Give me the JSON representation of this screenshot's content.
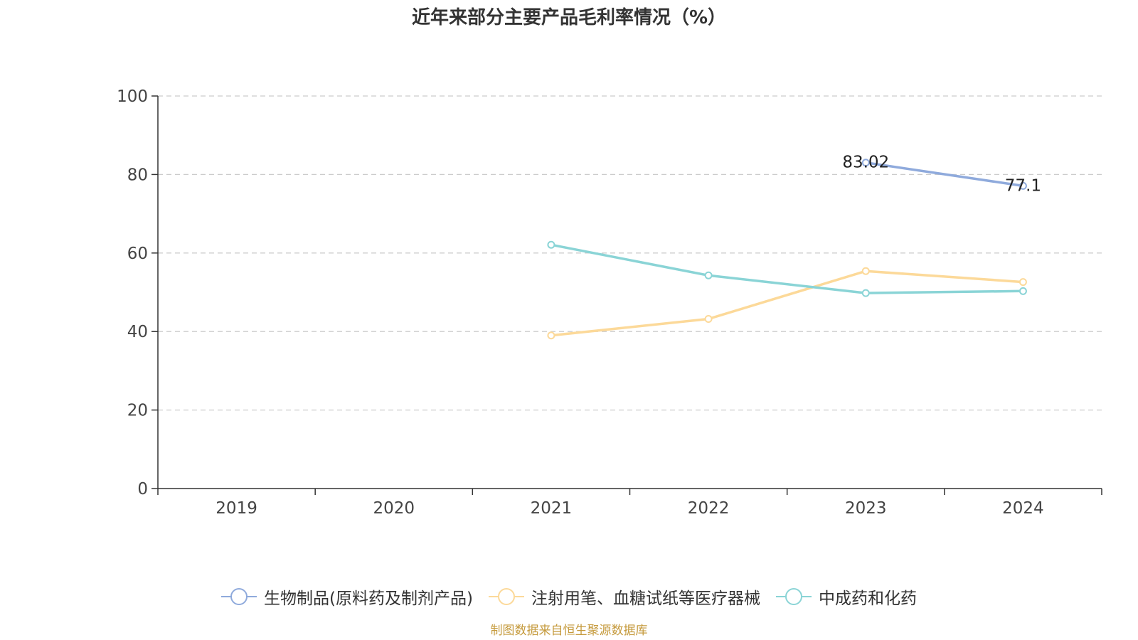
{
  "title": "近年来部分主要产品毛利率情况（%）",
  "source": "制图数据来自恒生聚源数据库",
  "chart_data": {
    "type": "line",
    "title": "近年来部分主要产品毛利率情况（%）",
    "categories": [
      "2019",
      "2020",
      "2021",
      "2022",
      "2023",
      "2024"
    ],
    "ylim": [
      0,
      100
    ],
    "yticks": [
      0,
      20,
      40,
      60,
      80,
      100
    ],
    "grid": "horizontal-dashed",
    "legend_position": "bottom",
    "series": [
      {
        "name": "生物制品(原料药及制剂产品)",
        "color": "#8faadc",
        "values": [
          null,
          null,
          null,
          null,
          83.02,
          77.1
        ],
        "labels": [
          null,
          null,
          null,
          null,
          "83.02",
          "77.1"
        ]
      },
      {
        "name": "注射用笔、血糖试纸等医疗器械",
        "color": "#fcd999",
        "values": [
          null,
          null,
          39.0,
          43.2,
          55.4,
          52.6
        ],
        "labels": [
          null,
          null,
          null,
          null,
          null,
          null
        ]
      },
      {
        "name": "中成药和化药",
        "color": "#8ad4d6",
        "values": [
          null,
          null,
          62.1,
          54.3,
          49.8,
          50.3
        ],
        "labels": [
          null,
          null,
          null,
          null,
          null,
          null
        ]
      }
    ]
  }
}
